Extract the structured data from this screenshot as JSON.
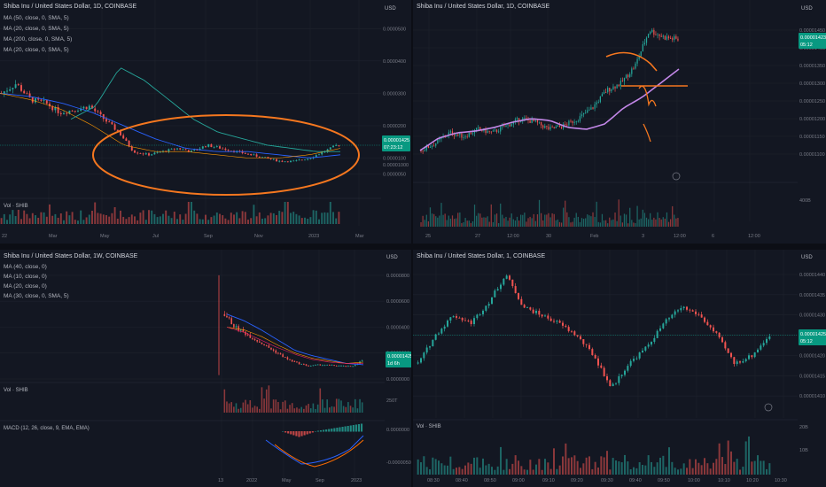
{
  "colors": {
    "bg": "#131722",
    "grid": "#1e222d",
    "up": "#26a69a",
    "down": "#ef5350",
    "axis": "#787b86",
    "price_label": "#089981",
    "annotation": "#f5771f",
    "ma": "#c387e8"
  },
  "currency_label": "USD",
  "panels": [
    {
      "title": "Shiba Inu / United States Dollar, 1D, COINBASE",
      "indicators": [
        "MA (50, close, 0, SMA, 5)",
        "MA (20, close, 0, SMA, 5)",
        "MA (200, close, 0, SMA, 5)",
        "MA (20, close, 0, SMA, 5)"
      ],
      "price_axis": [
        "0.0000500",
        "0.0000400",
        "0.0000300",
        "0.0000200",
        "0.0000100",
        "0.0000050"
      ],
      "price_label": "0.00001425",
      "price_label_sub": "07:23:12",
      "price_label_extra": "0.00001000",
      "time_axis": [
        "22",
        "Mar",
        "May",
        "Jul",
        "Sep",
        "Nov",
        "2023",
        "Mar"
      ],
      "volume_label": "Vol · SHIB"
    },
    {
      "title": "Shiba Inu / United States Dollar, 1D, COINBASE",
      "indicators": [],
      "price_axis": [
        "0.00001450",
        "0.00001400",
        "0.00001350",
        "0.00001300",
        "0.00001250",
        "0.00001200",
        "0.00001150",
        "0.00001100"
      ],
      "price_label": "0.00001423",
      "price_label_sub": "05:12",
      "volume_axis": "400B",
      "time_axis": [
        "25",
        "27",
        "12:00",
        "30",
        "Feb",
        "3",
        "12:00",
        "6",
        "12:00"
      ],
      "volume_label": ""
    },
    {
      "title": "Shiba Inu / United States Dollar, 1W, COINBASE",
      "indicators": [
        "MA (40, close, 0)",
        "MA (10, close, 0)",
        "MA (20, close, 0)",
        "MA (30, close, 0, SMA, 5)"
      ],
      "price_axis": [
        "0.0000800",
        "0.0000600",
        "0.0000400",
        "0.0000200",
        "0.0000000"
      ],
      "price_label": "0.00001425",
      "price_label_sub": "1d 6h",
      "volume_axis": "250T",
      "volume_label": "Vol · SHIB",
      "macd_label": "MACD (12, 26, close, 9, EMA, EMA)",
      "macd_axis": [
        "0.0000000",
        "-0.0000050"
      ],
      "time_axis": [
        "13",
        "2022",
        "May",
        "Sep",
        "2023"
      ]
    },
    {
      "title": "Shiba Inu / United States Dollar, 1, COINBASE",
      "indicators": [],
      "price_axis": [
        "0.00001440",
        "0.00001435",
        "0.00001430",
        "0.00001425",
        "0.00001420",
        "0.00001415",
        "0.00001410"
      ],
      "price_label": "0.00001425",
      "price_label_sub": "05:12",
      "volume_axis": [
        "20B",
        "10B"
      ],
      "volume_label": "Vol · SHIB",
      "time_axis": [
        "08:30",
        "08:40",
        "08:50",
        "09:00",
        "09:10",
        "09:20",
        "09:30",
        "09:40",
        "09:50",
        "10:00",
        "10:10",
        "10:20",
        "10:30"
      ]
    }
  ],
  "chart_data": [
    {
      "type": "candlestick",
      "title": "Shiba Inu / United States Dollar, 1D, COINBASE",
      "series": [
        {
          "name": "SHIB/USD",
          "values": [
            3e-05,
            3.3e-05,
            2.8e-05,
            2.7e-05,
            2.4e-05,
            2.5e-05,
            2.6e-05,
            2.2e-05,
            1.8e-05,
            1.2e-05,
            1.1e-05,
            1.2e-05,
            1.3e-05,
            1.2e-05,
            1.4e-05,
            1.3e-05,
            1.2e-05,
            1.1e-05,
            1e-05,
            9e-06,
            9e-06,
            1e-05,
            1.2e-05,
            1.425e-05
          ]
        }
      ]
    },
    {
      "type": "candlestick",
      "title": "Shiba Inu / United States Dollar, 1D, COINBASE",
      "series": [
        {
          "name": "SHIB/USD",
          "values": [
            1.11e-05,
            1.13e-05,
            1.16e-05,
            1.15e-05,
            1.17e-05,
            1.16e-05,
            1.18e-05,
            1.2e-05,
            1.19e-05,
            1.17e-05,
            1.18e-05,
            1.2e-05,
            1.23e-05,
            1.28e-05,
            1.3e-05,
            1.35e-05,
            1.45e-05,
            1.43e-05,
            1.423e-05
          ]
        }
      ]
    },
    {
      "type": "candlestick",
      "title": "Shiba Inu / United States Dollar, 1W, COINBASE",
      "series": [
        {
          "name": "SHIB/USD",
          "values": [
            5e-06,
            8e-05,
            5e-05,
            4e-05,
            3.5e-05,
            3e-05,
            2.5e-05,
            2e-05,
            1.5e-05,
            1.2e-05,
            1e-05,
            1.1e-05,
            1.05e-05,
            1e-05,
            9.5e-06,
            1.425e-05
          ]
        }
      ]
    },
    {
      "type": "candlestick",
      "title": "Shiba Inu / United States Dollar, 1, COINBASE",
      "series": [
        {
          "name": "SHIB/USD",
          "values": [
            1.418e-05,
            1.425e-05,
            1.43e-05,
            1.428e-05,
            1.433e-05,
            1.44e-05,
            1.432e-05,
            1.43e-05,
            1.428e-05,
            1.425e-05,
            1.42e-05,
            1.412e-05,
            1.418e-05,
            1.422e-05,
            1.428e-05,
            1.432e-05,
            1.43e-05,
            1.425e-05,
            1.418e-05,
            1.42e-05,
            1.425e-05
          ]
        }
      ]
    }
  ]
}
